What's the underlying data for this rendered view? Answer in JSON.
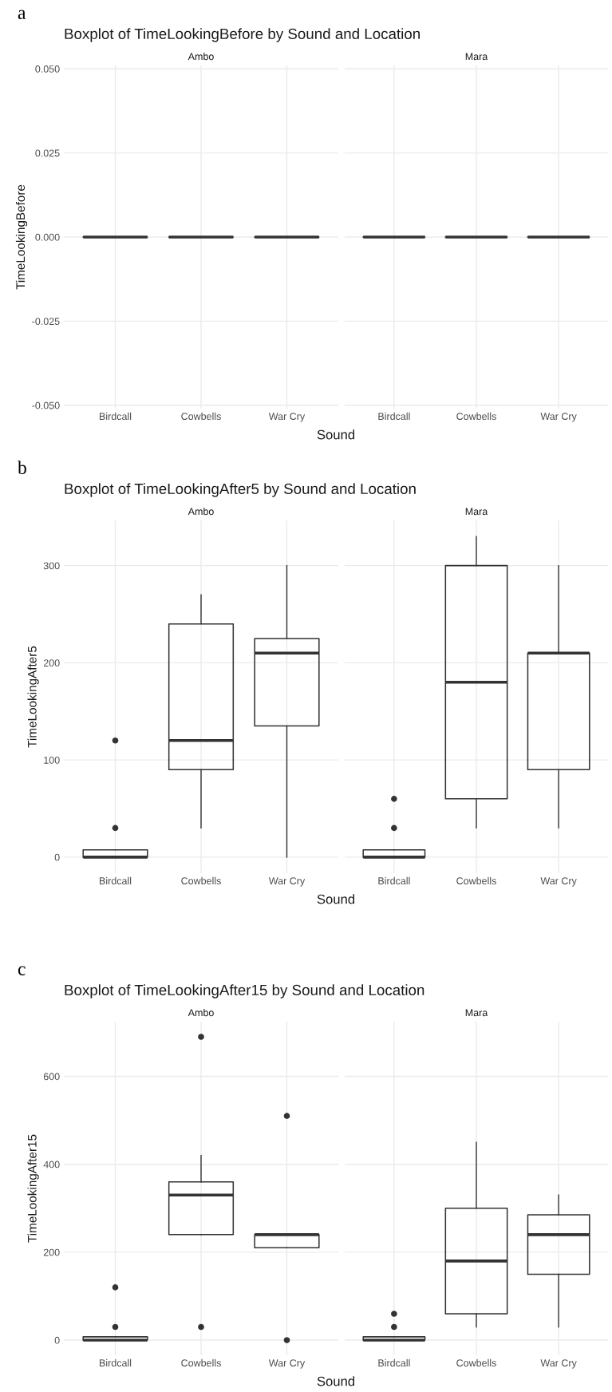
{
  "chart_data": [
    {
      "type": "box",
      "title": "Boxplot of TimeLookingBefore by Sound and Location",
      "subtitle": "Ambo",
      "ylabel": "TimeLookingBefore",
      "xlabel": "Sound",
      "annotations": [
        "a"
      ],
      "categories": [
        "Birdcall",
        "Cowbells",
        "War Cry"
      ],
      "boxes": [
        {
          "low": 0,
          "q1": 0,
          "median": 0,
          "q3": 0,
          "high": 0
        },
        {
          "low": 0,
          "q1": 0,
          "median": 0,
          "q3": 0,
          "high": 0
        },
        {
          "low": 0,
          "q1": 0,
          "median": 0,
          "q3": 0,
          "high": 0
        }
      ],
      "ylim": [
        -0.051,
        0.051
      ],
      "yticks": [
        {
          "value": -0.05,
          "label": "-0.050"
        },
        {
          "value": -0.025,
          "label": "-0.025"
        },
        {
          "value": 0,
          "label": "0.000"
        },
        {
          "value": 0.025,
          "label": "0.025"
        },
        {
          "value": 0.05,
          "label": "0.050"
        }
      ],
      "grid": true
    },
    {
      "type": "box",
      "subtitle": "Mara",
      "categories": [
        "Birdcall",
        "Cowbells",
        "War Cry"
      ],
      "boxes": [
        {
          "low": 0,
          "q1": 0,
          "median": 0,
          "q3": 0,
          "high": 0
        },
        {
          "low": 0,
          "q1": 0,
          "median": 0,
          "q3": 0,
          "high": 0
        },
        {
          "low": 0,
          "q1": 0,
          "median": 0,
          "q3": 0,
          "high": 0
        }
      ],
      "ylim": [
        -0.051,
        0.051
      ],
      "yticks": [
        -0.05,
        -0.025,
        0,
        0.025,
        0.05
      ],
      "grid": true,
      "tick_labels": "x"
    },
    {
      "type": "box",
      "title": "Boxplot of TimeLookingAfter5 by Sound and Location",
      "subtitle": "Ambo",
      "ylabel": "TimeLookingAfter5",
      "xlabel": "Sound",
      "annotations": [
        "b"
      ],
      "categories": [
        "Birdcall",
        "Cowbells",
        "War Cry"
      ],
      "boxes": [
        {
          "low": 0,
          "q1": 0,
          "median": 0,
          "q3": 7.5,
          "high": 7.5,
          "outliers": [
            30,
            120
          ]
        },
        {
          "low": 30,
          "q1": 90,
          "median": 120,
          "q3": 240,
          "high": 270
        },
        {
          "low": 0,
          "q1": 135,
          "median": 210,
          "q3": 225,
          "high": 300
        }
      ],
      "ylim": [
        -16.5,
        346.5
      ],
      "yticks": [
        0,
        100,
        200,
        300
      ],
      "grid": true
    },
    {
      "type": "box",
      "subtitle": "Mara",
      "categories": [
        "Birdcall",
        "Cowbells",
        "War Cry"
      ],
      "boxes": [
        {
          "low": 0,
          "q1": 0,
          "median": 0,
          "q3": 7.5,
          "high": 7.5,
          "outliers": [
            30,
            60
          ]
        },
        {
          "low": 30,
          "q1": 60,
          "median": 180,
          "q3": 300,
          "high": 330
        },
        {
          "low": 30,
          "q1": 90,
          "median": 210,
          "q3": 210,
          "high": 300
        }
      ],
      "ylim": [
        -16.5,
        346.5
      ],
      "yticks": [
        0,
        100,
        200,
        300
      ],
      "grid": true,
      "tick_labels": "x"
    },
    {
      "type": "box",
      "title": "Boxplot of TimeLookingAfter15 by Sound and Location",
      "subtitle": "Ambo",
      "ylabel": "TimeLookingAfter15",
      "xlabel": "Sound",
      "annotations": [
        "c"
      ],
      "categories": [
        "Birdcall",
        "Cowbells",
        "War Cry"
      ],
      "boxes": [
        {
          "low": 0,
          "q1": 0,
          "median": 0,
          "q3": 7.5,
          "high": 7.5,
          "outliers": [
            30,
            120
          ]
        },
        {
          "low": 240,
          "q1": 240,
          "median": 330,
          "q3": 360,
          "high": 420,
          "outliers": [
            30,
            690
          ]
        },
        {
          "low": 210,
          "q1": 210,
          "median": 240,
          "q3": 240,
          "high": 240,
          "outliers": [
            0,
            510
          ]
        }
      ],
      "ylim": [
        -34.5,
        724.5
      ],
      "yticks": [
        0,
        200,
        400,
        600
      ],
      "grid": true
    },
    {
      "type": "box",
      "subtitle": "Mara",
      "categories": [
        "Birdcall",
        "Cowbells",
        "War Cry"
      ],
      "boxes": [
        {
          "low": 0,
          "q1": 0,
          "median": 0,
          "q3": 7.5,
          "high": 7.5,
          "outliers": [
            30,
            60
          ]
        },
        {
          "low": 30,
          "q1": 60,
          "median": 180,
          "q3": 300,
          "high": 450
        },
        {
          "low": 30,
          "q1": 150,
          "median": 240,
          "q3": 285,
          "high": 330
        }
      ],
      "ylim": [
        -34.5,
        724.5
      ],
      "yticks": [
        0,
        200,
        400,
        600
      ],
      "grid": true,
      "tick_labels": "x"
    }
  ]
}
